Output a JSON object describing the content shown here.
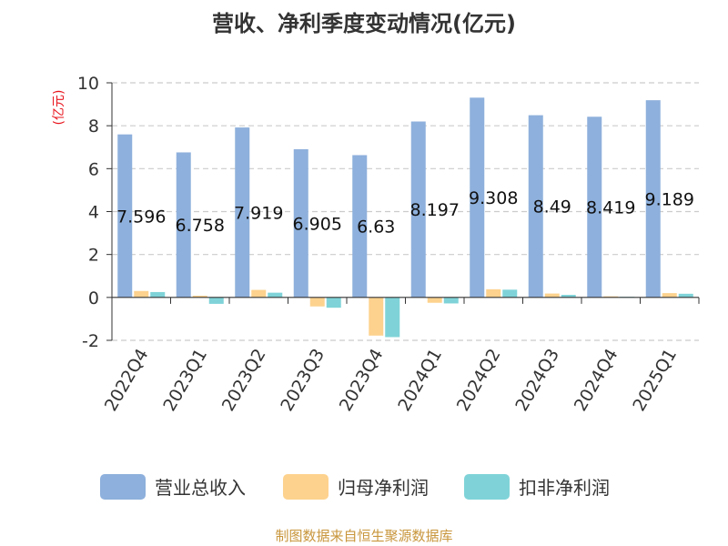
{
  "chart_data": {
    "type": "bar",
    "title": "营收、净利季度变动情况(亿元)",
    "ylabel": "(亿元)",
    "xlabel": "",
    "ylim": [
      -2,
      10
    ],
    "yticks": [
      -2,
      0,
      2,
      4,
      6,
      8,
      10
    ],
    "grid": true,
    "legend_position": "bottom",
    "categories": [
      "2022Q4",
      "2023Q1",
      "2023Q2",
      "2023Q3",
      "2023Q4",
      "2024Q1",
      "2024Q2",
      "2024Q3",
      "2024Q4",
      "2025Q1"
    ],
    "series": [
      {
        "name": "营业总收入",
        "color": "#8eb0dc",
        "values": [
          7.596,
          6.758,
          7.919,
          6.905,
          6.63,
          8.197,
          9.308,
          8.49,
          8.419,
          9.189
        ],
        "labels": [
          "7.596",
          "6.758",
          "7.919",
          "6.905",
          "6.63",
          "8.197",
          "9.308",
          "8.49",
          "8.419",
          "9.189"
        ]
      },
      {
        "name": "归母净利润",
        "color": "#fdd28e",
        "values": [
          0.3,
          0.08,
          0.35,
          -0.42,
          -1.78,
          -0.25,
          0.38,
          0.18,
          0.05,
          0.2
        ]
      },
      {
        "name": "扣非净利润",
        "color": "#7fd3d8",
        "values": [
          0.25,
          -0.3,
          0.22,
          -0.48,
          -1.85,
          -0.28,
          0.36,
          0.12,
          0.03,
          0.17
        ]
      }
    ]
  },
  "source": "制图数据来自恒生聚源数据库"
}
